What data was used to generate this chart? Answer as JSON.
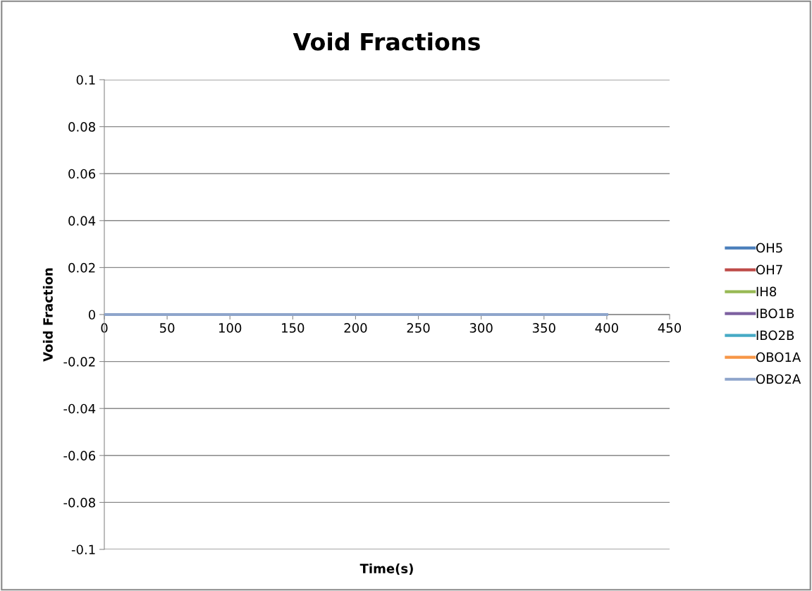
{
  "chart_data": {
    "type": "line",
    "title": "Void Fractions",
    "xlabel": "Time(s)",
    "ylabel": "Void Fraction",
    "xlim": [
      0,
      450
    ],
    "xticks": [
      0,
      50,
      100,
      150,
      200,
      250,
      300,
      350,
      400,
      450
    ],
    "ylim": [
      -0.1,
      0.1
    ],
    "yticks": [
      -0.1,
      -0.08,
      -0.06,
      -0.04,
      -0.02,
      0,
      0.02,
      0.04,
      0.06,
      0.08,
      0.1
    ],
    "x": [
      0,
      400
    ],
    "grid": "y",
    "legend": "right",
    "marker": "none",
    "line_style": "solid",
    "series": [
      {
        "name": "OH5",
        "color": "#4a7ebb",
        "values": [
          null,
          null
        ]
      },
      {
        "name": "OH7",
        "color": "#be4b48",
        "values": [
          null,
          null
        ]
      },
      {
        "name": "IH8",
        "color": "#98b954",
        "values": [
          null,
          null
        ]
      },
      {
        "name": "IBO1B",
        "color": "#7d60a0",
        "values": [
          null,
          null
        ]
      },
      {
        "name": "IBO2B",
        "color": "#46aac5",
        "values": [
          null,
          null
        ]
      },
      {
        "name": "OBO1A",
        "color": "#f79646",
        "values": [
          null,
          null
        ]
      },
      {
        "name": "OBO2A",
        "color": "#8ea5cb",
        "values": [
          0,
          0
        ]
      }
    ]
  }
}
